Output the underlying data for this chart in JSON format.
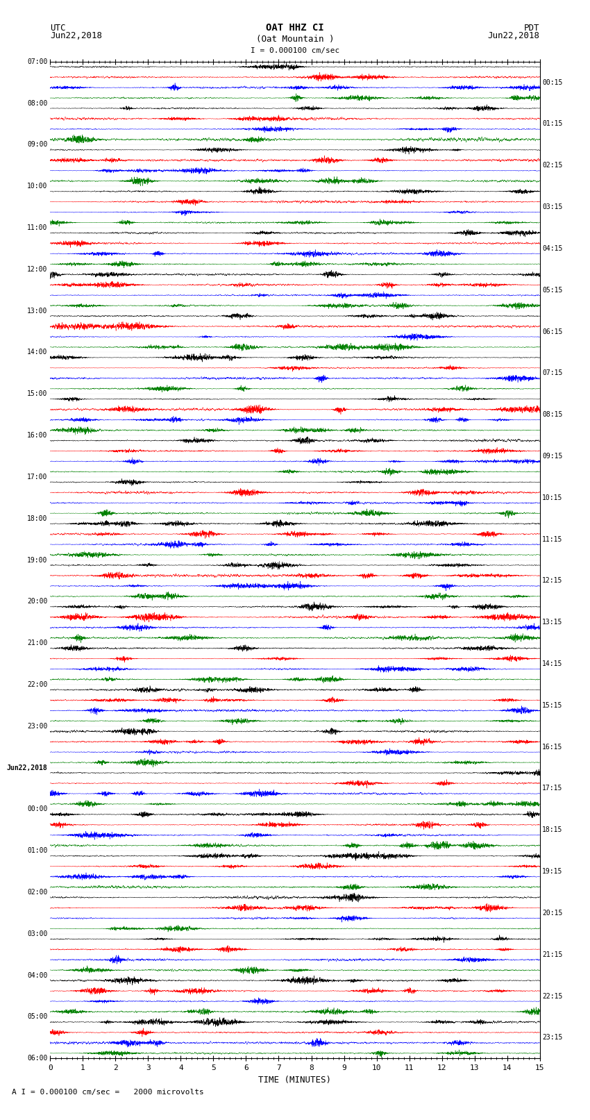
{
  "title_line1": "OAT HHZ CI",
  "title_line2": "(Oat Mountain )",
  "scale_label": "I = 0.000100 cm/sec",
  "bottom_label": "A I = 0.000100 cm/sec =   2000 microvolts",
  "xlabel": "TIME (MINUTES)",
  "utc_label": "UTC",
  "pdt_label": "PDT",
  "date_left": "Jun22,2018",
  "date_right": "Jun22,2018",
  "left_times_utc": [
    "07:00",
    "08:00",
    "09:00",
    "10:00",
    "11:00",
    "12:00",
    "13:00",
    "14:00",
    "15:00",
    "16:00",
    "17:00",
    "18:00",
    "19:00",
    "20:00",
    "21:00",
    "22:00",
    "23:00",
    "Jun22,2018",
    "00:00",
    "01:00",
    "02:00",
    "03:00",
    "04:00",
    "05:00",
    "06:00"
  ],
  "right_times_pdt": [
    "00:15",
    "01:15",
    "02:15",
    "03:15",
    "04:15",
    "05:15",
    "06:15",
    "07:15",
    "08:15",
    "09:15",
    "10:15",
    "11:15",
    "12:15",
    "13:15",
    "14:15",
    "15:15",
    "16:15",
    "17:15",
    "18:15",
    "19:15",
    "20:15",
    "21:15",
    "22:15",
    "23:15"
  ],
  "colors": [
    "black",
    "red",
    "blue",
    "green"
  ],
  "n_rows": 24,
  "traces_per_row": 4,
  "x_min": 0,
  "x_max": 15,
  "x_ticks": [
    0,
    1,
    2,
    3,
    4,
    5,
    6,
    7,
    8,
    9,
    10,
    11,
    12,
    13,
    14,
    15
  ],
  "bg_color": "white",
  "seed": 42
}
